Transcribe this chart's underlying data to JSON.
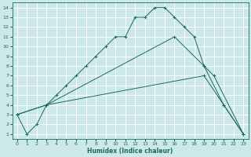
{
  "xlabel": "Humidex (Indice chaleur)",
  "bg_color": "#cce8e8",
  "grid_color": "#ffffff",
  "line_color": "#1a6b5a",
  "xlim": [
    -0.5,
    23.5
  ],
  "ylim": [
    0.5,
    14.5
  ],
  "xticks": [
    0,
    1,
    2,
    3,
    4,
    5,
    6,
    7,
    8,
    9,
    10,
    11,
    12,
    13,
    14,
    15,
    16,
    17,
    18,
    19,
    20,
    21,
    22,
    23
  ],
  "yticks": [
    1,
    2,
    3,
    4,
    5,
    6,
    7,
    8,
    9,
    10,
    11,
    12,
    13,
    14
  ],
  "line1_x": [
    0,
    1,
    2,
    3,
    4,
    5,
    6,
    7,
    8,
    9,
    10,
    11,
    12,
    13,
    14,
    15,
    16,
    17,
    18,
    19,
    20,
    23
  ],
  "line1_y": [
    3,
    1,
    2,
    4,
    5,
    6,
    7,
    8,
    9,
    10,
    11,
    11,
    13,
    13,
    14,
    14,
    13,
    12,
    11,
    8,
    7,
    1
  ],
  "line2_x": [
    0,
    3,
    19,
    21,
    23
  ],
  "line2_y": [
    3,
    4,
    7,
    4,
    1
  ],
  "line3_x": [
    0,
    3,
    16,
    19,
    21,
    23
  ],
  "line3_y": [
    3,
    4,
    11,
    8,
    4,
    1
  ]
}
